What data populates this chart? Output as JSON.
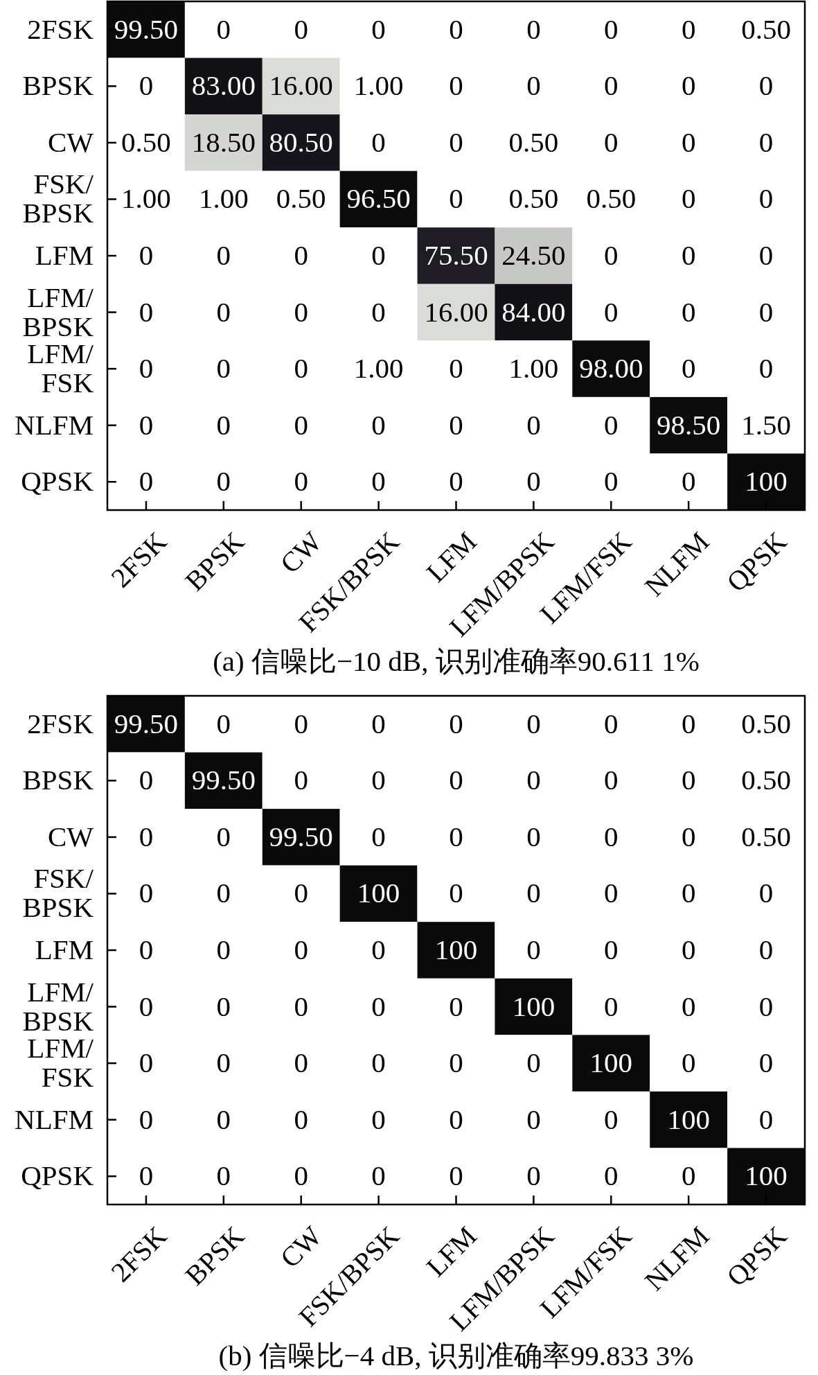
{
  "chart_data": [
    {
      "type": "heatmap",
      "title": "(a) 信噪比−10 dB, 识别准确率90.611 1%",
      "categories": [
        "2FSK",
        "BPSK",
        "CW",
        "FSK/BPSK",
        "LFM",
        "LFM/BPSK",
        "LFM/FSK",
        "NLFM",
        "QPSK"
      ],
      "y_categories": [
        "2FSK",
        "BPSK",
        "CW",
        "FSK/BPSK",
        "LFM",
        "LFM/BPSK",
        "LFM/FSK",
        "NLFM",
        "QPSK"
      ],
      "cells": [
        [
          99.5,
          0,
          0,
          0,
          0,
          0,
          0,
          0,
          0.5
        ],
        [
          0,
          83,
          16,
          1,
          0,
          0,
          0,
          0,
          0
        ],
        [
          0.5,
          18.5,
          80.5,
          0,
          0,
          0.5,
          0,
          0,
          0
        ],
        [
          1,
          1,
          0.5,
          96.5,
          0,
          0.5,
          0.5,
          0,
          0
        ],
        [
          0,
          0,
          0,
          0,
          75.5,
          24.5,
          0,
          0,
          0
        ],
        [
          0,
          0,
          0,
          0,
          16,
          84,
          0,
          0,
          0
        ],
        [
          0,
          0,
          0,
          1,
          0,
          1,
          98,
          0,
          0
        ],
        [
          0,
          0,
          0,
          0,
          0,
          0,
          0,
          98.5,
          1.5
        ],
        [
          0,
          0,
          0,
          0,
          0,
          0,
          0,
          0,
          100
        ]
      ],
      "cell_labels": [
        [
          "99.50",
          "0",
          "0",
          "0",
          "0",
          "0",
          "0",
          "0",
          "0.50"
        ],
        [
          "0",
          "83.00",
          "16.00",
          "1.00",
          "0",
          "0",
          "0",
          "0",
          "0"
        ],
        [
          "0.50",
          "18.50",
          "80.50",
          "0",
          "0",
          "0.50",
          "0",
          "0",
          "0"
        ],
        [
          "1.00",
          "1.00",
          "0.50",
          "96.50",
          "0",
          "0.50",
          "0.50",
          "0",
          "0"
        ],
        [
          "0",
          "0",
          "0",
          "0",
          "75.50",
          "24.50",
          "0",
          "0",
          "0"
        ],
        [
          "0",
          "0",
          "0",
          "0",
          "16.00",
          "84.00",
          "0",
          "0",
          "0"
        ],
        [
          "0",
          "0",
          "0",
          "1.00",
          "0",
          "1.00",
          "98.00",
          "0",
          "0"
        ],
        [
          "0",
          "0",
          "0",
          "0",
          "0",
          "0",
          "0",
          "98.50",
          "1.50"
        ],
        [
          "0",
          "0",
          "0",
          "0",
          "0",
          "0",
          "0",
          "0",
          "100"
        ]
      ]
    },
    {
      "type": "heatmap",
      "title": "(b) 信噪比−4 dB, 识别准确率99.833 3%",
      "categories": [
        "2FSK",
        "BPSK",
        "CW",
        "FSK/BPSK",
        "LFM",
        "LFM/BPSK",
        "LFM/FSK",
        "NLFM",
        "QPSK"
      ],
      "y_categories": [
        "2FSK",
        "BPSK",
        "CW",
        "FSK/BPSK",
        "LFM",
        "LFM/BPSK",
        "LFM/FSK",
        "NLFM",
        "QPSK"
      ],
      "cells": [
        [
          99.5,
          0,
          0,
          0,
          0,
          0,
          0,
          0,
          0.5
        ],
        [
          0,
          99.5,
          0,
          0,
          0,
          0,
          0,
          0,
          0.5
        ],
        [
          0,
          0,
          99.5,
          0,
          0,
          0,
          0,
          0,
          0.5
        ],
        [
          0,
          0,
          0,
          100,
          0,
          0,
          0,
          0,
          0
        ],
        [
          0,
          0,
          0,
          0,
          100,
          0,
          0,
          0,
          0
        ],
        [
          0,
          0,
          0,
          0,
          0,
          100,
          0,
          0,
          0
        ],
        [
          0,
          0,
          0,
          0,
          0,
          0,
          100,
          0,
          0
        ],
        [
          0,
          0,
          0,
          0,
          0,
          0,
          0,
          100,
          0
        ],
        [
          0,
          0,
          0,
          0,
          0,
          0,
          0,
          0,
          100
        ]
      ],
      "cell_labels": [
        [
          "99.50",
          "0",
          "0",
          "0",
          "0",
          "0",
          "0",
          "0",
          "0.50"
        ],
        [
          "0",
          "99.50",
          "0",
          "0",
          "0",
          "0",
          "0",
          "0",
          "0.50"
        ],
        [
          "0",
          "0",
          "99.50",
          "0",
          "0",
          "0",
          "0",
          "0",
          "0.50"
        ],
        [
          "0",
          "0",
          "0",
          "100",
          "0",
          "0",
          "0",
          "0",
          "0"
        ],
        [
          "0",
          "0",
          "0",
          "0",
          "100",
          "0",
          "0",
          "0",
          "0"
        ],
        [
          "0",
          "0",
          "0",
          "0",
          "0",
          "100",
          "0",
          "0",
          "0"
        ],
        [
          "0",
          "0",
          "0",
          "0",
          "0",
          "0",
          "100",
          "0",
          "0"
        ],
        [
          "0",
          "0",
          "0",
          "0",
          "0",
          "0",
          "0",
          "100",
          "0"
        ],
        [
          "0",
          "0",
          "0",
          "0",
          "0",
          "0",
          "0",
          "0",
          "100"
        ]
      ]
    }
  ]
}
